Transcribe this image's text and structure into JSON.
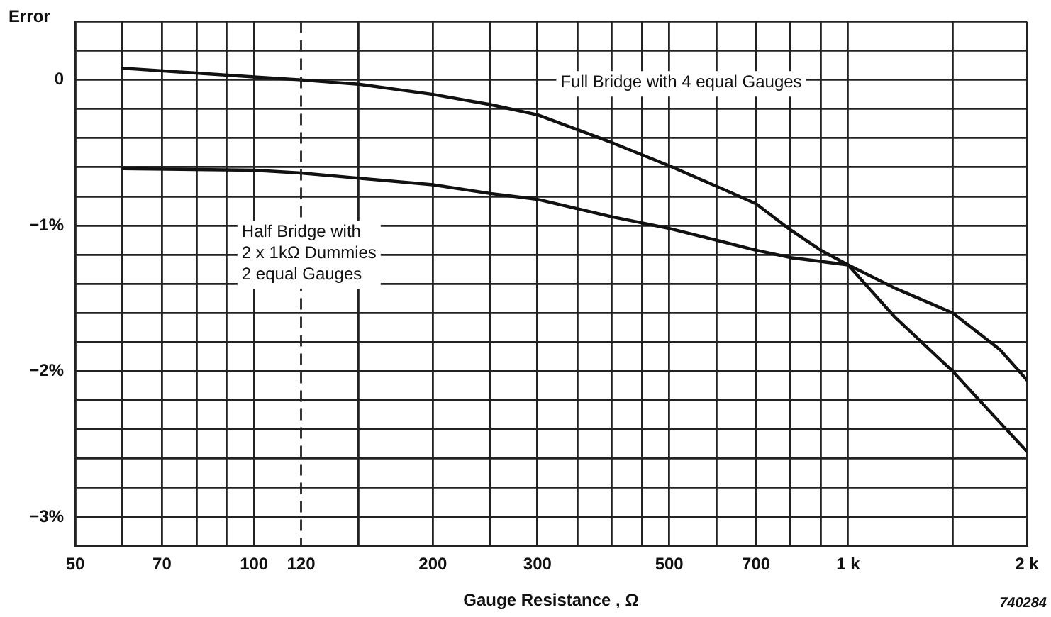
{
  "chart_data": {
    "type": "line",
    "ylabel": "Error",
    "xlabel": "Gauge Resistance , Ω",
    "log": "x",
    "xlim": [
      50,
      2000
    ],
    "ylim": [
      -3.2,
      0.4
    ],
    "xticks": [
      50,
      {
        "value": 60,
        "label": null
      },
      70,
      {
        "value": 80,
        "label": null
      },
      {
        "value": 90,
        "label": null
      },
      100,
      120,
      {
        "value": 150,
        "label": null
      },
      200,
      {
        "value": 250,
        "label": null
      },
      300,
      {
        "value": 350,
        "label": null
      },
      {
        "value": 400,
        "label": null
      },
      {
        "value": 450,
        "label": null
      },
      500,
      {
        "value": 600,
        "label": null
      },
      700,
      {
        "value": 800,
        "label": null
      },
      {
        "value": 900,
        "label": null
      },
      {
        "value": 1000,
        "label": "1 k"
      },
      {
        "value": 1500,
        "label": null
      },
      {
        "value": 2000,
        "label": "2 k"
      }
    ],
    "yticks": [
      {
        "value": -3.2,
        "label": null
      },
      {
        "value": -3,
        "label": "−3%"
      },
      {
        "value": -2.8,
        "label": null
      },
      {
        "value": -2.6,
        "label": null
      },
      {
        "value": -2.4,
        "label": null
      },
      {
        "value": -2.2,
        "label": null
      },
      {
        "value": -2,
        "label": "−2%"
      },
      {
        "value": -1.8,
        "label": null
      },
      {
        "value": -1.6,
        "label": null
      },
      {
        "value": -1.4,
        "label": null
      },
      {
        "value": -1.2,
        "label": null
      },
      {
        "value": -1,
        "label": "−1%"
      },
      {
        "value": -0.8,
        "label": null
      },
      {
        "value": -0.6,
        "label": null
      },
      {
        "value": -0.4,
        "label": null
      },
      {
        "value": -0.2,
        "label": null
      },
      0,
      {
        "value": 0.2,
        "label": null
      },
      {
        "value": 0.4,
        "label": null
      }
    ],
    "grid": true,
    "legend": false,
    "marker": "none",
    "line_style": "solid",
    "ref_lines": [
      {
        "axis": "x",
        "value": 120,
        "line_style": "dashed",
        "color": "#222222"
      }
    ],
    "series": [
      {
        "name": "Full Bridge with 4 equal Gauges",
        "color": "#111111",
        "x": [
          60,
          100,
          120,
          150,
          200,
          250,
          300,
          400,
          500,
          600,
          700,
          800,
          900,
          1000,
          1200,
          1500,
          1800,
          2000
        ],
        "values": [
          0.08,
          0.02,
          0,
          -0.03,
          -0.1,
          -0.17,
          -0.24,
          -0.43,
          -0.59,
          -0.73,
          -0.85,
          -1.03,
          -1.17,
          -1.27,
          -1.63,
          -2,
          -2.35,
          -2.55
        ]
      },
      {
        "name": "Half Bridge with\n2 x 1kΩ Dummies\n2 equal Gauges",
        "color": "#111111",
        "x": [
          60,
          100,
          120,
          200,
          250,
          300,
          400,
          500,
          600,
          700,
          800,
          1000,
          1200,
          1500,
          1800,
          2000
        ],
        "values": [
          -0.61,
          -0.62,
          -0.64,
          -0.72,
          -0.78,
          -0.82,
          -0.94,
          -1.02,
          -1.1,
          -1.17,
          -1.22,
          -1.27,
          -1.43,
          -1.6,
          -1.85,
          -2.06
        ]
      }
    ],
    "annotations": [
      "740284"
    ]
  }
}
